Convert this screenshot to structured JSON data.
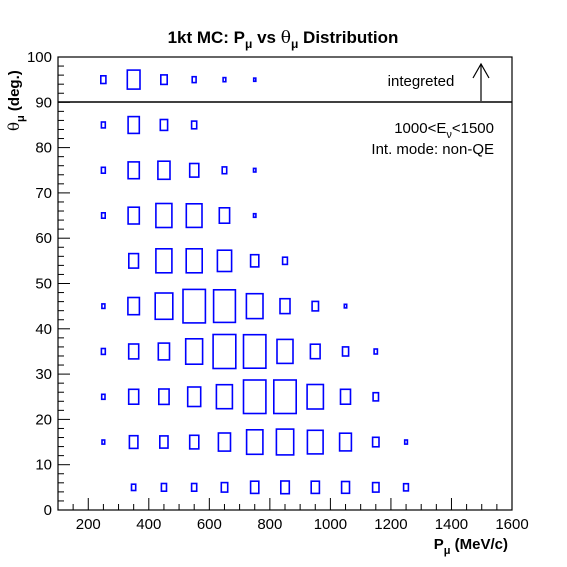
{
  "chart_data": {
    "type": "box",
    "title": {
      "prefix": "1kt MC: P",
      "p_sub": "μ",
      "middle": " vs ",
      "theta": "θ",
      "theta_sub": "μ",
      "suffix": " Distribution"
    },
    "xlabel": {
      "main": "P",
      "sub": "μ",
      "rest": " (MeV/c)"
    },
    "ylabel": {
      "main": "θ",
      "sub": "μ",
      "rest": " (deg.)"
    },
    "xlim": [
      100,
      1600
    ],
    "ylim": [
      0,
      100
    ],
    "xticks": [
      200,
      400,
      600,
      800,
      1000,
      1200,
      1400,
      1600
    ],
    "yticks": [
      0,
      10,
      20,
      30,
      40,
      50,
      60,
      70,
      80,
      90,
      100
    ],
    "integrated_band": {
      "y_from": 90,
      "y_to": 100,
      "label": "integreted"
    },
    "annotations": {
      "energy": {
        "prefix": "1000<E",
        "sub": "ν",
        "suffix": "<1500"
      },
      "mode": "Int. mode: non-QE"
    },
    "bin_width": {
      "x": 100,
      "y": 10
    },
    "color": "#0000ff",
    "note": "values = relative box size (fraction of bin width)",
    "bins": [
      {
        "theta": 95,
        "cells": [
          [
            250,
            0.17
          ],
          [
            350,
            0.42
          ],
          [
            450,
            0.21
          ],
          [
            550,
            0.13
          ],
          [
            650,
            0.09
          ],
          [
            750,
            0.07
          ]
        ]
      },
      {
        "theta": 85,
        "cells": [
          [
            250,
            0.13
          ],
          [
            350,
            0.37
          ],
          [
            450,
            0.24
          ],
          [
            550,
            0.17
          ]
        ]
      },
      {
        "theta": 75,
        "cells": [
          [
            250,
            0.13
          ],
          [
            350,
            0.37
          ],
          [
            450,
            0.4
          ],
          [
            550,
            0.3
          ],
          [
            650,
            0.15
          ],
          [
            750,
            0.08
          ]
        ]
      },
      {
        "theta": 65,
        "cells": [
          [
            250,
            0.12
          ],
          [
            350,
            0.37
          ],
          [
            450,
            0.53
          ],
          [
            550,
            0.52
          ],
          [
            650,
            0.34
          ],
          [
            750,
            0.08
          ]
        ]
      },
      {
        "theta": 55,
        "cells": [
          [
            350,
            0.32
          ],
          [
            450,
            0.53
          ],
          [
            550,
            0.53
          ],
          [
            650,
            0.47
          ],
          [
            750,
            0.27
          ],
          [
            850,
            0.16
          ]
        ]
      },
      {
        "theta": 45,
        "cells": [
          [
            250,
            0.1
          ],
          [
            350,
            0.38
          ],
          [
            450,
            0.58
          ],
          [
            550,
            0.74
          ],
          [
            650,
            0.72
          ],
          [
            750,
            0.55
          ],
          [
            850,
            0.33
          ],
          [
            950,
            0.21
          ],
          [
            1050,
            0.08
          ]
        ]
      },
      {
        "theta": 35,
        "cells": [
          [
            250,
            0.13
          ],
          [
            350,
            0.33
          ],
          [
            450,
            0.37
          ],
          [
            550,
            0.56
          ],
          [
            650,
            0.75
          ],
          [
            750,
            0.74
          ],
          [
            850,
            0.53
          ],
          [
            950,
            0.32
          ],
          [
            1050,
            0.2
          ],
          [
            1150,
            0.11
          ]
        ]
      },
      {
        "theta": 25,
        "cells": [
          [
            250,
            0.11
          ],
          [
            350,
            0.33
          ],
          [
            450,
            0.34
          ],
          [
            550,
            0.43
          ],
          [
            650,
            0.53
          ],
          [
            750,
            0.74
          ],
          [
            850,
            0.74
          ],
          [
            950,
            0.54
          ],
          [
            1050,
            0.33
          ],
          [
            1150,
            0.18
          ]
        ]
      },
      {
        "theta": 15,
        "cells": [
          [
            250,
            0.09
          ],
          [
            350,
            0.28
          ],
          [
            450,
            0.27
          ],
          [
            550,
            0.3
          ],
          [
            650,
            0.4
          ],
          [
            750,
            0.54
          ],
          [
            850,
            0.57
          ],
          [
            950,
            0.52
          ],
          [
            1050,
            0.39
          ],
          [
            1150,
            0.21
          ],
          [
            1250,
            0.09
          ]
        ]
      },
      {
        "theta": 5,
        "cells": [
          [
            350,
            0.14
          ],
          [
            450,
            0.17
          ],
          [
            550,
            0.17
          ],
          [
            650,
            0.21
          ],
          [
            750,
            0.27
          ],
          [
            850,
            0.28
          ],
          [
            950,
            0.27
          ],
          [
            1050,
            0.26
          ],
          [
            1150,
            0.21
          ],
          [
            1250,
            0.16
          ]
        ]
      }
    ]
  }
}
